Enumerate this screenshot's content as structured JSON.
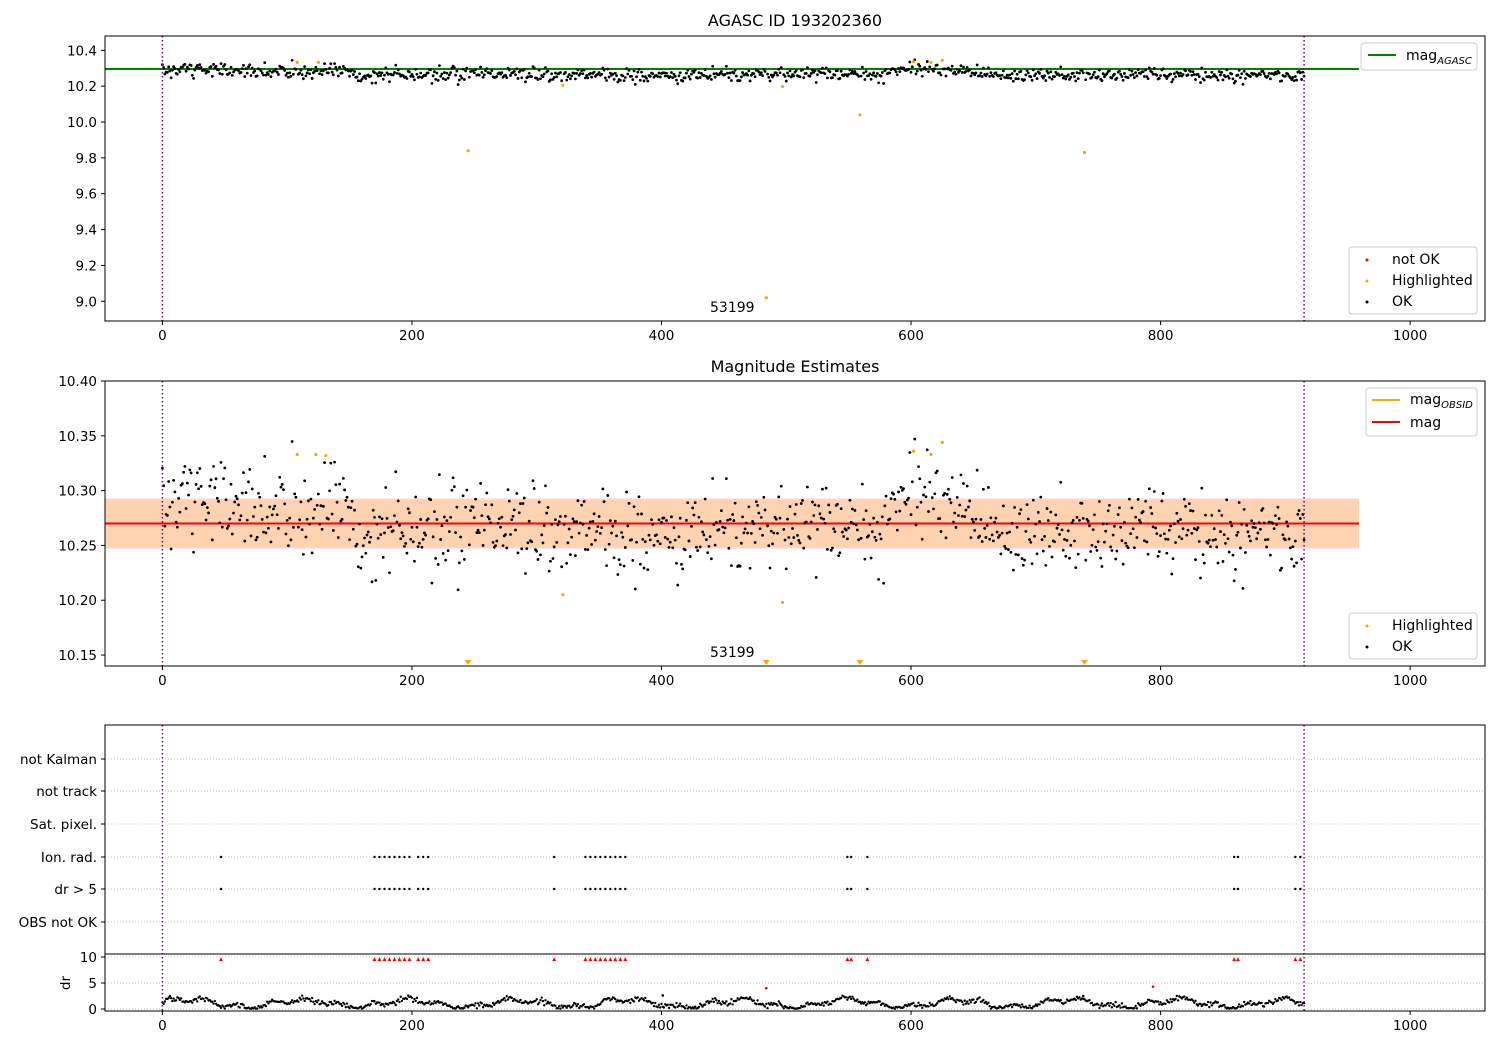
{
  "chart_data": [
    {
      "type": "scatter",
      "title": "AGASC ID 193202360",
      "xlim": [
        -46,
        1060
      ],
      "ylim": [
        8.89,
        10.48
      ],
      "xticks": [
        0,
        200,
        400,
        600,
        800,
        1000
      ],
      "yticks": [
        9.0,
        9.2,
        9.4,
        9.6,
        9.8,
        10.0,
        10.2,
        10.4
      ],
      "obs_boundaries": [
        0,
        915
      ],
      "mag_agasc": 10.296,
      "mag_agasc_label": "mag",
      "mag_agasc_sub": "AGASC",
      "annotation": "53199",
      "legend_markers": [
        {
          "label": "not OK",
          "color": "#ff0000"
        },
        {
          "label": "Highlighted",
          "color": "#ffa500"
        },
        {
          "label": "OK",
          "color": "#000000"
        }
      ],
      "highlighted": [
        {
          "x": 108,
          "y": 10.333
        },
        {
          "x": 125,
          "y": 10.333
        },
        {
          "x": 245,
          "y": 9.84
        },
        {
          "x": 321,
          "y": 10.205
        },
        {
          "x": 484,
          "y": 9.02
        },
        {
          "x": 497,
          "y": 10.198
        },
        {
          "x": 559,
          "y": 10.04
        },
        {
          "x": 602,
          "y": 10.336
        },
        {
          "x": 616,
          "y": 10.333
        },
        {
          "x": 625,
          "y": 10.344
        },
        {
          "x": 739,
          "y": 9.83
        }
      ]
    },
    {
      "type": "scatter",
      "title": "Magnitude Estimates",
      "xlim": [
        -46,
        1060
      ],
      "ylim": [
        10.14,
        10.4
      ],
      "xticks": [
        0,
        200,
        400,
        600,
        800,
        1000
      ],
      "yticks": [
        10.15,
        10.2,
        10.25,
        10.3,
        10.35,
        10.4
      ],
      "obs_boundaries": [
        0,
        915
      ],
      "mag": 10.27,
      "mag_band": [
        10.247,
        10.293
      ],
      "mag_obsid_band": [
        10.248,
        10.292
      ],
      "band_xrange": [
        -46,
        959
      ],
      "annotation": "53199",
      "line_legend": [
        {
          "label": "mag",
          "sub": "OBSID",
          "color": "#ffa500"
        },
        {
          "label": "mag",
          "sub": "",
          "color": "#ff0000"
        }
      ],
      "legend_markers": [
        {
          "label": "Highlighted",
          "color": "#ffa500"
        },
        {
          "label": "OK",
          "color": "#000000"
        }
      ],
      "highlighted": [
        {
          "x": 108,
          "y": 10.333
        },
        {
          "x": 123,
          "y": 10.333
        },
        {
          "x": 131,
          "y": 10.332
        },
        {
          "x": 321,
          "y": 10.205
        },
        {
          "x": 497,
          "y": 10.198
        },
        {
          "x": 602,
          "y": 10.336
        },
        {
          "x": 616,
          "y": 10.333
        },
        {
          "x": 625,
          "y": 10.344
        }
      ],
      "off_scale_markers": [
        245,
        484,
        559,
        739
      ]
    },
    {
      "type": "scatter",
      "title": "",
      "xlim": [
        -46,
        1060
      ],
      "flag_rows": [
        "not Kalman",
        "not track",
        "Sat. pixel.",
        "Ion. rad.",
        "dr > 5",
        "OBS not OK"
      ],
      "ionrad_x": [
        47,
        170,
        174,
        178,
        182,
        186,
        190,
        194,
        198,
        205,
        209,
        213,
        314,
        339,
        343,
        347,
        351,
        355,
        359,
        363,
        367,
        371,
        549,
        552,
        565,
        859,
        862,
        908,
        912
      ],
      "dr_label": "dr",
      "dr_yticks": [
        0,
        5,
        10
      ],
      "dr_outliers": [
        {
          "x": 484,
          "y": 4.0
        },
        {
          "x": 794,
          "y": 4.3
        },
        {
          "x": 401,
          "y": 2.6
        },
        {
          "x": 738,
          "y": 2.5
        }
      ],
      "xticks": [
        0,
        200,
        400,
        600,
        800,
        1000
      ]
    }
  ]
}
